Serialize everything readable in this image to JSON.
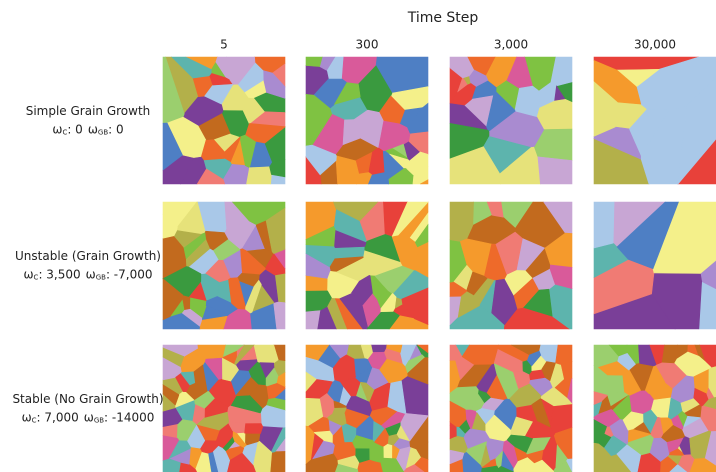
{
  "header": {
    "title": "Time Step",
    "columns": [
      "5",
      "300",
      "3,000",
      "30,000"
    ]
  },
  "rows": [
    {
      "label": "Simple Grain Growth",
      "params": [
        {
          "symbol": "ω",
          "subscript": "C",
          "text": ": 0"
        },
        {
          "symbol": "ω",
          "subscript": "GB",
          "text": ": 0"
        }
      ]
    },
    {
      "label": "Unstable (Grain Growth)",
      "params": [
        {
          "symbol": "ω",
          "subscript": "C",
          "text": ": 3,500"
        },
        {
          "symbol": "ω",
          "subscript": "GB",
          "text": ": -7,000"
        }
      ]
    },
    {
      "label": "Stable (No Grain Growth)",
      "params": [
        {
          "symbol": "ω",
          "subscript": "C",
          "text": ": 7,000"
        },
        {
          "symbol": "ω",
          "subscript": "GB",
          "text": ": -14000"
        }
      ]
    }
  ]
}
